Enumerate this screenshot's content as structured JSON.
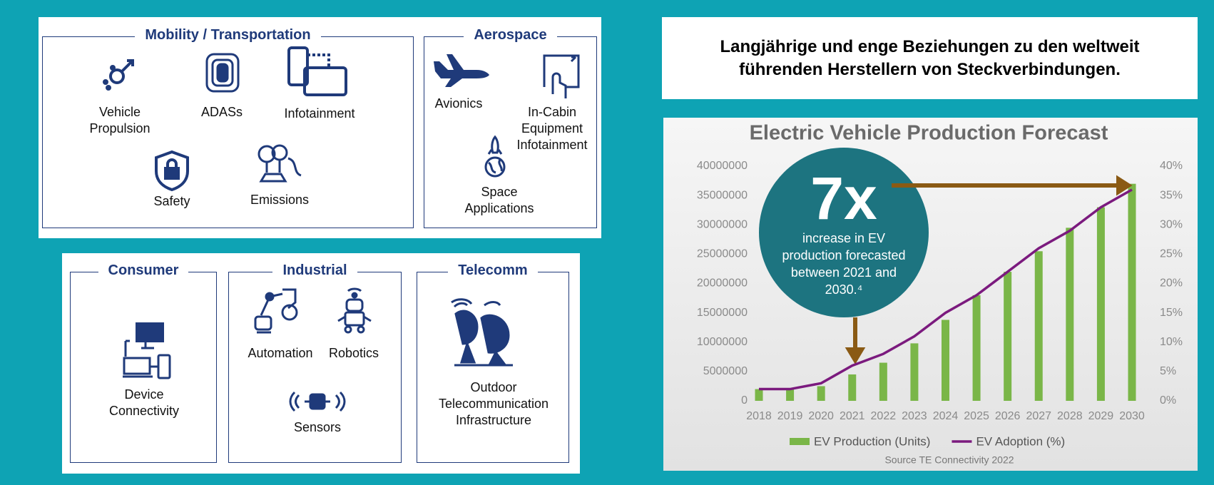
{
  "panels": [
    {
      "title": "Mobility / Transportation",
      "items": [
        "Vehicle Propulsion",
        "ADASs",
        "Infotainment",
        "Safety",
        "Emissions"
      ]
    },
    {
      "title": "Aerospace",
      "items": [
        "Avionics",
        "In-Cabin Equipment Infotainment",
        "Space Applications"
      ]
    },
    {
      "title": "Consumer",
      "items": [
        "Device Connectivity"
      ]
    },
    {
      "title": "Industrial",
      "items": [
        "Automation",
        "Robotics",
        "Sensors"
      ]
    },
    {
      "title": "Telecomm",
      "items": [
        "Outdoor Telecommunication Infrastructure"
      ]
    }
  ],
  "heading": "Langjährige und enge Beziehungen zu den weltweit führenden Herstellern von Steckverbindungen.",
  "chart_data": {
    "type": "bar_line",
    "title": "Electric Vehicle Production Forecast",
    "categories": [
      "2018",
      "2019",
      "2020",
      "2021",
      "2022",
      "2023",
      "2024",
      "2025",
      "2026",
      "2027",
      "2028",
      "2029",
      "2030"
    ],
    "series": [
      {
        "name": "EV Production (Units)",
        "color": "#7ab648",
        "type": "bar",
        "values": [
          2000000,
          2000000,
          2500000,
          4500000,
          6500000,
          9800000,
          13800000,
          18000000,
          22000000,
          25500000,
          29500000,
          33000000,
          37000000
        ]
      },
      {
        "name": "EV Adoption (%)",
        "color": "#7b1a7e",
        "type": "line",
        "axis": "y2",
        "values": [
          2,
          2,
          3,
          6,
          8,
          11,
          15,
          18,
          22,
          26,
          29,
          33,
          36
        ]
      }
    ],
    "ylim": [
      0,
      40000000
    ],
    "yticks": [
      0,
      5000000,
      10000000,
      15000000,
      20000000,
      25000000,
      30000000,
      35000000,
      40000000
    ],
    "y2lim": [
      0,
      40
    ],
    "y2ticks": [
      {
        "value": 0,
        "label": "0%"
      },
      {
        "value": 5,
        "label": "5%"
      },
      {
        "value": 10,
        "label": "10%"
      },
      {
        "value": 15,
        "label": "15%"
      },
      {
        "value": 20,
        "label": "20%"
      },
      {
        "value": 25,
        "label": "25%"
      },
      {
        "value": 30,
        "label": "30%"
      },
      {
        "value": 35,
        "label": "35%"
      },
      {
        "value": 40,
        "label": "40%"
      }
    ],
    "legend": "bottom",
    "annotations": [
      "7x",
      "increase in EV production forecasted between 2021 and 2030.⁴"
    ],
    "source": "Source TE Connectivity 2022"
  }
}
